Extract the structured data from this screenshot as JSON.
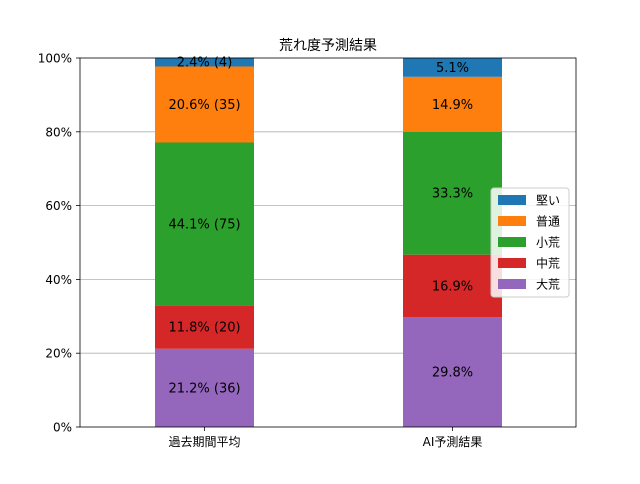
{
  "chart_data": {
    "type": "bar",
    "stacked": true,
    "title": "荒れ度予測結果",
    "xlabel": "",
    "ylabel": "",
    "ylim": [
      0,
      100
    ],
    "y_tick_labels": [
      "0%",
      "20%",
      "40%",
      "60%",
      "80%",
      "100%"
    ],
    "grid": "y",
    "legend_position": "right",
    "categories": [
      "過去期間平均",
      "AI予測結果"
    ],
    "series": [
      {
        "name": "大荒",
        "color": "#9467bd",
        "values": [
          21.2,
          29.8
        ],
        "labels": [
          "21.2% (36)",
          "29.8%"
        ]
      },
      {
        "name": "中荒",
        "color": "#d62728",
        "values": [
          11.8,
          16.9
        ],
        "labels": [
          "11.8% (20)",
          "16.9%"
        ]
      },
      {
        "name": "小荒",
        "color": "#2ca02c",
        "values": [
          44.1,
          33.3
        ],
        "labels": [
          "44.1% (75)",
          "33.3%"
        ]
      },
      {
        "name": "普通",
        "color": "#ff7f0e",
        "values": [
          20.6,
          14.9
        ],
        "labels": [
          "20.6% (35)",
          "14.9%"
        ]
      },
      {
        "name": "堅い",
        "color": "#1f77b4",
        "values": [
          2.4,
          5.1
        ],
        "labels": [
          "2.4% (4)",
          "5.1%"
        ]
      }
    ],
    "legend_order": [
      "堅い",
      "普通",
      "小荒",
      "中荒",
      "大荒"
    ]
  }
}
